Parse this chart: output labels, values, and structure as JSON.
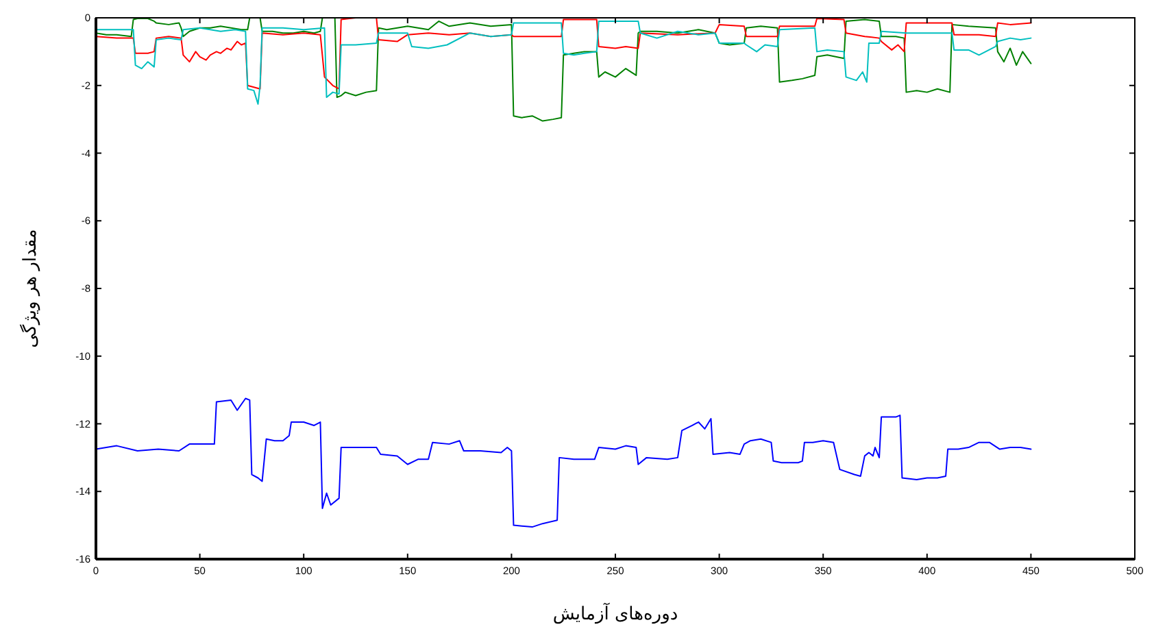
{
  "chart_data": {
    "type": "line",
    "xlabel": "دوره‌های آزمایش",
    "ylabel": "مقدار هر ویژگی",
    "xlim": [
      0,
      500
    ],
    "ylim": [
      -16,
      0
    ],
    "xticks": [
      0,
      50,
      100,
      150,
      200,
      250,
      300,
      350,
      400,
      450,
      500
    ],
    "yticks": [
      -16,
      -14,
      -12,
      -10,
      -8,
      -6,
      -4,
      -2,
      0
    ],
    "series": [
      {
        "color": "#0000ff",
        "x": [
          0,
          10,
          20,
          30,
          40,
          45,
          57,
          58,
          65,
          68,
          72,
          74,
          75,
          78,
          80,
          82,
          86,
          90,
          93,
          94,
          100,
          105,
          108,
          109,
          111,
          113,
          117,
          118,
          125,
          135,
          137,
          145,
          150,
          155,
          160,
          162,
          170,
          175,
          177,
          185,
          195,
          198,
          200,
          201,
          210,
          215,
          222,
          223,
          230,
          240,
          242,
          250,
          255,
          260,
          261,
          265,
          275,
          280,
          282,
          287,
          290,
          293,
          296,
          297,
          305,
          310,
          312,
          315,
          320,
          325,
          326,
          330,
          338,
          340,
          341,
          345,
          350,
          355,
          358,
          365,
          368,
          370,
          372,
          374,
          375,
          377,
          378,
          385,
          387,
          388,
          395,
          400,
          405,
          409,
          410,
          415,
          420,
          425,
          430,
          435,
          440,
          445,
          450
        ],
        "values": [
          -12.75,
          -12.65,
          -12.8,
          -12.75,
          -12.8,
          -12.6,
          -12.6,
          -11.35,
          -11.3,
          -11.6,
          -11.25,
          -11.3,
          -13.5,
          -13.6,
          -13.7,
          -12.45,
          -12.5,
          -12.5,
          -12.35,
          -11.95,
          -11.95,
          -12.05,
          -11.95,
          -14.5,
          -14.05,
          -14.4,
          -14.2,
          -12.7,
          -12.7,
          -12.7,
          -12.9,
          -12.95,
          -13.2,
          -13.05,
          -13.05,
          -12.55,
          -12.6,
          -12.5,
          -12.8,
          -12.8,
          -12.85,
          -12.7,
          -12.8,
          -15.0,
          -15.05,
          -14.95,
          -14.85,
          -13.0,
          -13.05,
          -13.05,
          -12.7,
          -12.75,
          -12.65,
          -12.7,
          -13.2,
          -13.0,
          -13.05,
          -13.0,
          -12.2,
          -12.05,
          -11.95,
          -12.15,
          -11.85,
          -12.9,
          -12.85,
          -12.9,
          -12.6,
          -12.5,
          -12.45,
          -12.55,
          -13.1,
          -13.15,
          -13.15,
          -13.1,
          -12.55,
          -12.55,
          -12.5,
          -12.55,
          -13.35,
          -13.5,
          -13.55,
          -12.95,
          -12.85,
          -12.95,
          -12.7,
          -13.0,
          -11.8,
          -11.8,
          -11.75,
          -13.6,
          -13.65,
          -13.6,
          -13.6,
          -13.55,
          -12.75,
          -12.75,
          -12.7,
          -12.55,
          -12.55,
          -12.75,
          -12.7,
          -12.7,
          -12.75
        ]
      },
      {
        "color": "#008000",
        "x": [
          0,
          5,
          10,
          17,
          18,
          20,
          25,
          28,
          29,
          35,
          40,
          41,
          42,
          45,
          50,
          55,
          60,
          65,
          70,
          73,
          74,
          79,
          80,
          85,
          90,
          95,
          100,
          105,
          108,
          109,
          115,
          116,
          118,
          120,
          125,
          130,
          135,
          136,
          140,
          150,
          160,
          165,
          170,
          180,
          190,
          200,
          201,
          205,
          210,
          215,
          220,
          224,
          225,
          230,
          235,
          241,
          242,
          245,
          250,
          255,
          260,
          261,
          262,
          270,
          280,
          290,
          298,
          300,
          305,
          312,
          313,
          320,
          328,
          329,
          335,
          340,
          346,
          347,
          352,
          360,
          361,
          370,
          377,
          378,
          385,
          389,
          390,
          395,
          400,
          405,
          411,
          412,
          420,
          433,
          434,
          437,
          440,
          443,
          446,
          450
        ],
        "values": [
          -0.45,
          -0.5,
          -0.5,
          -0.55,
          -0.05,
          -0.02,
          -0.02,
          -0.1,
          -0.15,
          -0.2,
          -0.15,
          -0.3,
          -0.55,
          -0.4,
          -0.3,
          -0.3,
          -0.25,
          -0.3,
          -0.35,
          -0.35,
          0,
          0,
          -0.4,
          -0.4,
          -0.45,
          -0.45,
          -0.4,
          -0.45,
          -0.4,
          0,
          0,
          -2.35,
          -2.3,
          -2.2,
          -2.3,
          -2.2,
          -2.15,
          -0.3,
          -0.35,
          -0.25,
          -0.35,
          -0.1,
          -0.25,
          -0.15,
          -0.25,
          -0.2,
          -2.9,
          -2.95,
          -2.9,
          -3.05,
          -3.0,
          -2.95,
          -1.1,
          -1.05,
          -1.0,
          -1.0,
          -1.75,
          -1.6,
          -1.75,
          -1.5,
          -1.7,
          -0.45,
          -0.4,
          -0.4,
          -0.45,
          -0.35,
          -0.45,
          -0.75,
          -0.8,
          -0.75,
          -0.3,
          -0.25,
          -0.3,
          -1.9,
          -1.85,
          -1.8,
          -1.7,
          -1.15,
          -1.1,
          -1.2,
          -0.1,
          -0.05,
          -0.1,
          -0.55,
          -0.55,
          -0.6,
          -2.2,
          -2.15,
          -2.2,
          -2.1,
          -2.2,
          -0.2,
          -0.25,
          -0.3,
          -1.0,
          -1.3,
          -0.9,
          -1.4,
          -1.0,
          -1.35
        ]
      },
      {
        "color": "#ff0000",
        "x": [
          0,
          10,
          18,
          19,
          25,
          28,
          29,
          35,
          41,
          42,
          45,
          48,
          50,
          53,
          55,
          58,
          60,
          63,
          65,
          68,
          70,
          72,
          73,
          76,
          79,
          80,
          90,
          100,
          108,
          110,
          114,
          117,
          118,
          125,
          135,
          136,
          145,
          150,
          160,
          170,
          180,
          190,
          200,
          201,
          224,
          225,
          241,
          242,
          250,
          255,
          261,
          262,
          280,
          298,
          300,
          312,
          313,
          328,
          329,
          346,
          347,
          360,
          361,
          370,
          377,
          378,
          383,
          386,
          389,
          390,
          400,
          412,
          413,
          425,
          433,
          434,
          440,
          450
        ],
        "values": [
          -0.55,
          -0.6,
          -0.6,
          -1.05,
          -1.05,
          -1.0,
          -0.6,
          -0.55,
          -0.6,
          -1.1,
          -1.3,
          -1.0,
          -1.15,
          -1.25,
          -1.1,
          -1.0,
          -1.05,
          -0.9,
          -0.95,
          -0.7,
          -0.8,
          -0.75,
          -2.0,
          -2.05,
          -2.1,
          -0.45,
          -0.5,
          -0.45,
          -0.5,
          -1.75,
          -2.0,
          -2.1,
          -0.05,
          0,
          0,
          -0.65,
          -0.7,
          -0.5,
          -0.45,
          -0.5,
          -0.45,
          -0.55,
          -0.5,
          -0.55,
          -0.55,
          -0.05,
          -0.05,
          -0.85,
          -0.9,
          -0.85,
          -0.9,
          -0.45,
          -0.5,
          -0.45,
          -0.2,
          -0.25,
          -0.55,
          -0.55,
          -0.25,
          -0.25,
          -0.02,
          -0.05,
          -0.45,
          -0.55,
          -0.6,
          -0.7,
          -0.95,
          -0.8,
          -1.0,
          -0.15,
          -0.15,
          -0.15,
          -0.5,
          -0.5,
          -0.55,
          -0.15,
          -0.2,
          -0.15
        ]
      },
      {
        "color": "#00bfbf",
        "x": [
          0,
          10,
          18,
          19,
          22,
          25,
          28,
          29,
          35,
          41,
          42,
          50,
          60,
          67,
          72,
          73,
          76,
          78,
          79,
          80,
          90,
          100,
          110,
          111,
          114,
          117,
          118,
          125,
          135,
          136,
          150,
          152,
          160,
          169,
          180,
          190,
          200,
          201,
          224,
          225,
          230,
          235,
          241,
          242,
          261,
          262,
          270,
          280,
          290,
          298,
          300,
          312,
          313,
          318,
          322,
          328,
          329,
          346,
          347,
          352,
          360,
          361,
          366,
          369,
          371,
          372,
          377,
          378,
          390,
          400,
          412,
          413,
          420,
          425,
          433,
          434,
          440,
          445,
          450
        ],
        "values": [
          -0.35,
          -0.35,
          -0.35,
          -1.4,
          -1.5,
          -1.3,
          -1.45,
          -0.65,
          -0.6,
          -0.65,
          -0.35,
          -0.3,
          -0.4,
          -0.35,
          -0.4,
          -2.1,
          -2.15,
          -2.55,
          -2.0,
          -0.3,
          -0.3,
          -0.35,
          -0.3,
          -2.35,
          -2.2,
          -2.25,
          -0.8,
          -0.8,
          -0.75,
          -0.45,
          -0.45,
          -0.85,
          -0.9,
          -0.8,
          -0.45,
          -0.55,
          -0.5,
          -0.15,
          -0.15,
          -1.05,
          -1.1,
          -1.05,
          -1.0,
          -0.1,
          -0.1,
          -0.45,
          -0.6,
          -0.4,
          -0.5,
          -0.45,
          -0.75,
          -0.75,
          -0.8,
          -1.0,
          -0.8,
          -0.85,
          -0.35,
          -0.3,
          -1.0,
          -0.95,
          -1.0,
          -1.75,
          -1.85,
          -1.6,
          -1.9,
          -0.75,
          -0.75,
          -0.4,
          -0.45,
          -0.45,
          -0.45,
          -0.95,
          -0.95,
          -1.1,
          -0.85,
          -0.7,
          -0.6,
          -0.65,
          -0.6
        ]
      }
    ]
  }
}
